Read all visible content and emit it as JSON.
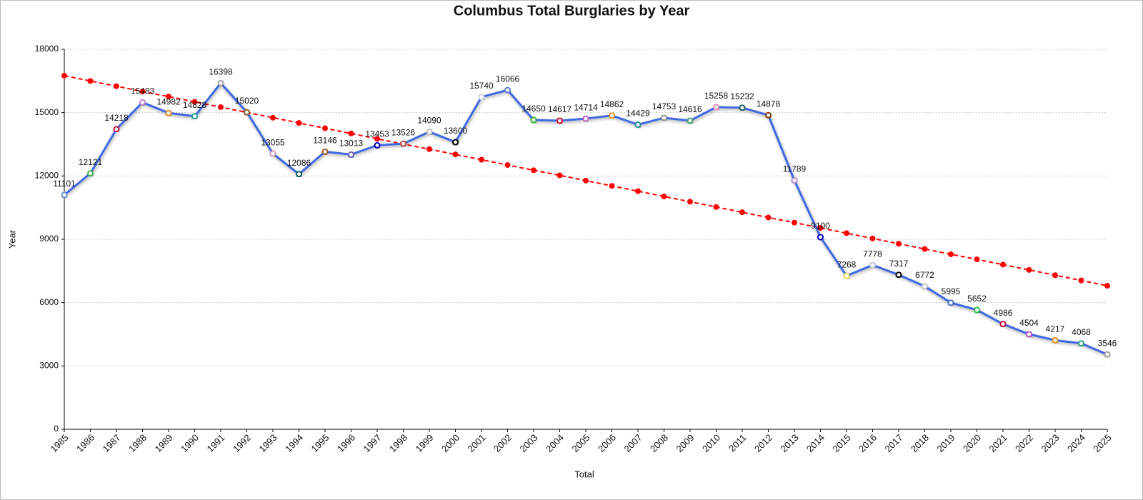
{
  "chart_data": {
    "type": "line",
    "title": "Columbus Total Burglaries by Year",
    "x_label": "Total",
    "y_label": "Year",
    "categories": [
      "1985",
      "1986",
      "1987",
      "1988",
      "1989",
      "1990",
      "1991",
      "1992",
      "1993",
      "1994",
      "1995",
      "1996",
      "1997",
      "1998",
      "1999",
      "2000",
      "2001",
      "2002",
      "2003",
      "2004",
      "2005",
      "2006",
      "2007",
      "2008",
      "2009",
      "2010",
      "2011",
      "2012",
      "2013",
      "2014",
      "2015",
      "2016",
      "2017",
      "2018",
      "2019",
      "2020",
      "2021",
      "2022",
      "2023",
      "2024",
      "2025"
    ],
    "series": [
      {
        "name": "Total",
        "color": "#4169e1",
        "values": [
          11101,
          12121,
          14218,
          15483,
          14982,
          14828,
          16398,
          15020,
          13055,
          12086,
          13146,
          13013,
          13453,
          13526,
          14090,
          13600,
          15740,
          16066,
          14650,
          14617,
          14714,
          14862,
          14429,
          14753,
          14616,
          15258,
          15232,
          14878,
          11789,
          9100,
          7268,
          7778,
          7317,
          6772,
          5995,
          5652,
          4986,
          4504,
          4217,
          4068,
          3546
        ],
        "marker_colors": [
          "#6a8fd8",
          "#3cb043",
          "#c0143c",
          "#c080d0",
          "#e08a1e",
          "#20a090",
          "#a0a0a0",
          "#8b5a2b",
          "#d8a0c0",
          "#106060",
          "#a05a20",
          "#7060c0",
          "#0000c0",
          "#c04040",
          "#c0c0c0",
          "#000000",
          "#d0d0e8",
          "#6080d0",
          "#30b030",
          "#d01030",
          "#c060c0",
          "#e09020",
          "#2090a0",
          "#909090",
          "#40a070",
          "#e890b0",
          "#206060",
          "#8b3a10",
          "#b090d0",
          "#0000d0",
          "#e0e060",
          "#c0c8d8",
          "#000000",
          "#c8c8c8",
          "#5070c0",
          "#30c040",
          "#c01040",
          "#c050c0",
          "#e09020",
          "#20a080",
          "#a0a0a0"
        ]
      }
    ],
    "trend": {
      "color": "#ff0000",
      "values": [
        16750,
        16500,
        16250,
        16000,
        15760,
        15510,
        15260,
        15010,
        14760,
        14510,
        14260,
        14010,
        13760,
        13510,
        13270,
        13020,
        12770,
        12520,
        12270,
        12030,
        11780,
        11530,
        11280,
        11030,
        10780,
        10530,
        10280,
        10030,
        9790,
        9540,
        9290,
        9040,
        8790,
        8540,
        8290,
        8050,
        7800,
        7550,
        7300,
        7050,
        6800
      ]
    },
    "ylim": [
      0,
      18000
    ],
    "yticks": [
      0,
      3000,
      6000,
      9000,
      12000,
      15000,
      18000
    ],
    "grid": true
  }
}
